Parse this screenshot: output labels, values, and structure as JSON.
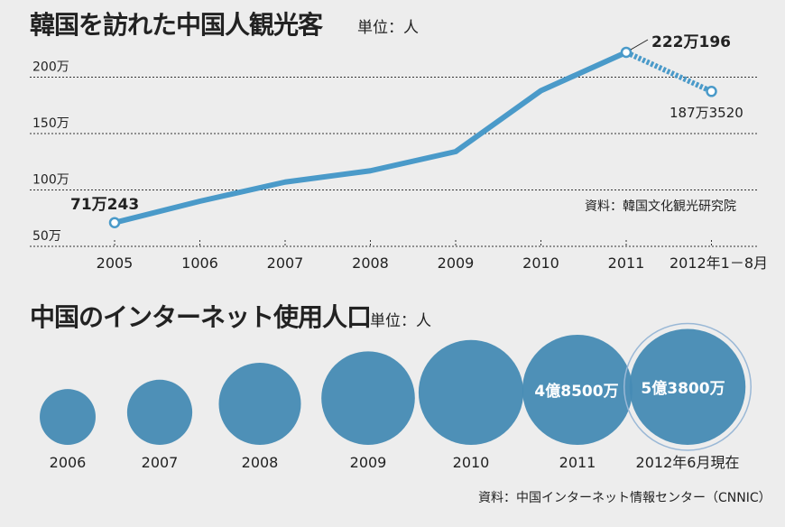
{
  "chart_data": [
    {
      "type": "line",
      "title": "韓国を訪れた中国人観光客",
      "unit_label": "単位：人",
      "categories": [
        "2005",
        "1006",
        "2007",
        "2008",
        "2009",
        "2010",
        "2011",
        "2012年1－8月"
      ],
      "values": [
        71.0243,
        90,
        107,
        117,
        134,
        188,
        222.0196,
        187.352
      ],
      "value_unit": "万人",
      "last_segment_dashed": true,
      "ylim": [
        50,
        200
      ],
      "yticks": [
        {
          "v": 50,
          "label": "50万"
        },
        {
          "v": 100,
          "label": "100万"
        },
        {
          "v": 150,
          "label": "150万"
        },
        {
          "v": 200,
          "label": "200万"
        }
      ],
      "grid": "dotted horizontal",
      "annotations": [
        {
          "index": 0,
          "label": "71万243"
        },
        {
          "index": 6,
          "label": "222万196"
        },
        {
          "index": 7,
          "label": "187万3520"
        }
      ],
      "source": "資料：韓国文化観光研究院",
      "color": "#4a9ac9"
    },
    {
      "type": "bubble",
      "title": "中国のインターネット使用人口",
      "unit_label": "単位：人",
      "categories": [
        "2006",
        "2007",
        "2008",
        "2009",
        "2010",
        "2011",
        "2012年6月現在"
      ],
      "values": [
        12500,
        17000,
        27000,
        35000,
        44000,
        48500,
        53800
      ],
      "value_unit": "万人",
      "labels": [
        null,
        null,
        null,
        null,
        null,
        "4億8500万",
        "5億3800万"
      ],
      "source": "資料：中国インターネット情報センター（CNNIC）",
      "color": "#468bb4"
    }
  ]
}
